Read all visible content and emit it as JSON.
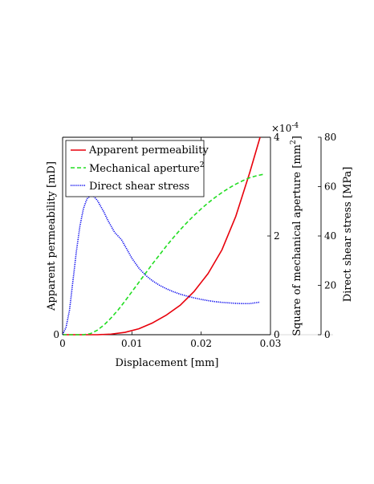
{
  "chart_data": {
    "type": "line",
    "title": "",
    "legend_placement": "top-left",
    "grid": false,
    "xlabel": "Displacement [mm]",
    "xlim": [
      0,
      0.03
    ],
    "xticks": [
      "0",
      "0.01",
      "0.02",
      "0.03"
    ],
    "y_axes": [
      {
        "id": "left",
        "label": "Apparent permeability [mD]",
        "ticks": [
          "0"
        ],
        "range_note": "no scale printed except 0"
      },
      {
        "id": "middle",
        "label": "Square of mechanical aperture [mm",
        "label_superscript": "2",
        "label_suffix": "]",
        "ticks": [
          "0",
          "2",
          "4"
        ],
        "ylim": [
          0,
          4
        ],
        "multiplier": "×10",
        "multiplier_exponent": "-4"
      },
      {
        "id": "right",
        "label": "Direct shear stress [MPa]",
        "ticks": [
          "0",
          "20",
          "40",
          "60",
          "80"
        ],
        "ylim": [
          0,
          80
        ]
      }
    ],
    "series": [
      {
        "name": "Apparent permeability",
        "color": "#e8000b",
        "style": "solid",
        "axis": "left",
        "x": [
          0.0,
          0.005,
          0.007,
          0.009,
          0.011,
          0.013,
          0.015,
          0.017,
          0.019,
          0.021,
          0.023,
          0.025,
          0.027,
          0.0285
        ],
        "y_fraction_of_axis": [
          0.0,
          0.0,
          0.003,
          0.012,
          0.03,
          0.06,
          0.1,
          0.15,
          0.22,
          0.31,
          0.43,
          0.6,
          0.82,
          1.0
        ]
      },
      {
        "name": "Mechanical aperture",
        "name_superscript": "2",
        "color": "#22dd22",
        "style": "dashed",
        "axis": "middle",
        "x": [
          0.0,
          0.003,
          0.004,
          0.005,
          0.006,
          0.007,
          0.008,
          0.009,
          0.01,
          0.011,
          0.012,
          0.013,
          0.014,
          0.015,
          0.016,
          0.017,
          0.018,
          0.019,
          0.02,
          0.021,
          0.022,
          0.023,
          0.024,
          0.025,
          0.026,
          0.027,
          0.028,
          0.029
        ],
        "y": [
          0.0,
          0.0,
          0.02,
          0.09,
          0.2,
          0.34,
          0.5,
          0.68,
          0.87,
          1.06,
          1.25,
          1.44,
          1.62,
          1.8,
          1.97,
          2.13,
          2.28,
          2.42,
          2.55,
          2.67,
          2.78,
          2.88,
          2.97,
          3.05,
          3.12,
          3.18,
          3.22,
          3.25
        ]
      },
      {
        "name": "Direct shear stress",
        "color": "#0000ee",
        "style": "dotted",
        "axis": "right",
        "x": [
          0.0,
          0.0005,
          0.001,
          0.0015,
          0.002,
          0.0025,
          0.003,
          0.0035,
          0.004,
          0.0045,
          0.005,
          0.0055,
          0.006,
          0.0065,
          0.007,
          0.0075,
          0.008,
          0.0085,
          0.009,
          0.0095,
          0.01,
          0.011,
          0.012,
          0.013,
          0.014,
          0.015,
          0.016,
          0.017,
          0.018,
          0.019,
          0.02,
          0.021,
          0.022,
          0.023,
          0.024,
          0.025,
          0.026,
          0.027,
          0.028,
          0.0285
        ],
        "y": [
          0.0,
          3.0,
          10.0,
          22.0,
          34.0,
          44.0,
          51.0,
          55.0,
          56.3,
          56.0,
          54.5,
          52.0,
          49.5,
          46.5,
          44.0,
          41.5,
          40.0,
          38.5,
          36.0,
          33.5,
          31.0,
          27.0,
          24.0,
          21.8,
          20.0,
          18.6,
          17.4,
          16.4,
          15.6,
          14.9,
          14.3,
          13.8,
          13.4,
          13.1,
          12.9,
          12.7,
          12.6,
          12.6,
          13.0,
          13.2
        ]
      }
    ]
  }
}
